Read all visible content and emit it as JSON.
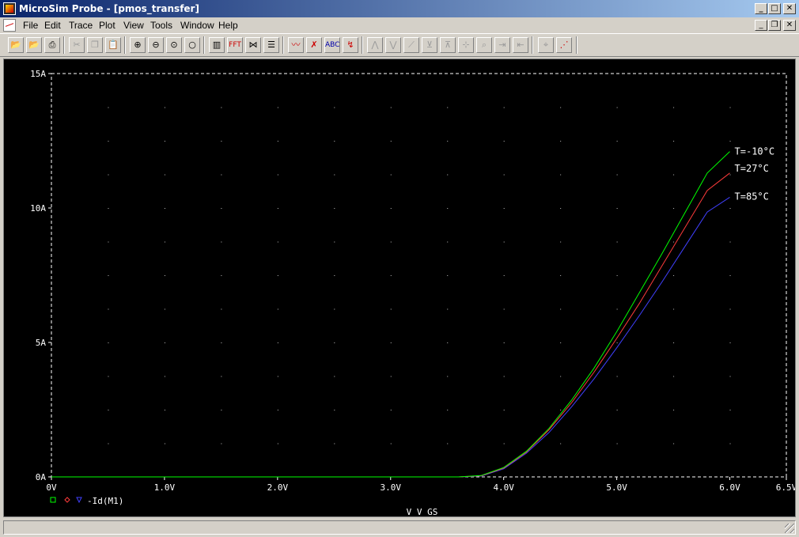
{
  "window": {
    "title": "MicroSim Probe - [pmos_transfer]"
  },
  "menu": [
    "File",
    "Edit",
    "Trace",
    "Plot",
    "View",
    "Tools",
    "Window",
    "Help"
  ],
  "toolbar": [
    "open-icon",
    "open-append-icon",
    "print-icon",
    "cut-icon",
    "copy-icon",
    "paste-icon",
    "zoom-in-icon",
    "zoom-out-icon",
    "zoom-area-icon",
    "zoom-fit-icon",
    "toggle-plot-icon",
    "fft-icon",
    "performance-icon",
    "eval-icon",
    "add-trace-icon",
    "delete-traces-icon",
    "label-icon",
    "mark-data-points-icon",
    "cursor-peak-icon",
    "cursor-trough-icon",
    "cursor-slope-icon",
    "cursor-min-icon",
    "cursor-max-icon",
    "cursor-point-icon",
    "cursor-search-icon",
    "next-transition-icon",
    "previous-transition-icon",
    "mark-label-icon",
    "display-measurements-icon"
  ],
  "colors": {
    "background": "#000000",
    "grid": "#ffffff",
    "series": [
      "#00ff00",
      "#ff3b3b",
      "#4040ff"
    ]
  },
  "chart_data": {
    "type": "line",
    "title": "",
    "xlabel": "V_V_GS",
    "ylabel": "",
    "xlim": [
      0,
      6.5
    ],
    "ylim": [
      0,
      15
    ],
    "xticks": [
      "0V",
      "1.0V",
      "2.0V",
      "3.0V",
      "4.0V",
      "5.0V",
      "6.0V",
      "6.5V"
    ],
    "xtick_values": [
      0,
      1,
      2,
      3,
      4,
      5,
      6,
      6.5
    ],
    "yticks": [
      "0A",
      "5A",
      "10A",
      "15A"
    ],
    "ytick_values": [
      0,
      5,
      10,
      15
    ],
    "grid": "dotted",
    "legend": {
      "position": "bottom-left",
      "text": "-Id(M1)",
      "markers": [
        "square",
        "diamond",
        "triangle"
      ]
    },
    "series": [
      {
        "name": "T=-10°C",
        "color": "#00ff00",
        "x": [
          0,
          3.0,
          3.6,
          3.8,
          4.0,
          4.2,
          4.4,
          4.6,
          4.8,
          5.0,
          5.2,
          5.4,
          5.6,
          5.8,
          6.0
        ],
        "y": [
          0,
          0,
          0,
          0.05,
          0.35,
          0.95,
          1.8,
          2.85,
          4.05,
          5.4,
          6.85,
          8.3,
          9.8,
          11.3,
          12.1
        ]
      },
      {
        "name": "T=27°C",
        "color": "#ff3b3b",
        "x": [
          0,
          3.0,
          3.6,
          3.8,
          4.0,
          4.2,
          4.4,
          4.6,
          4.8,
          5.0,
          5.2,
          5.4,
          5.6,
          5.8,
          6.0
        ],
        "y": [
          0,
          0,
          0,
          0.04,
          0.33,
          0.92,
          1.75,
          2.75,
          3.9,
          5.15,
          6.45,
          7.85,
          9.25,
          10.65,
          11.3
        ]
      },
      {
        "name": "T=85°C",
        "color": "#4040ff",
        "x": [
          0,
          3.0,
          3.6,
          3.8,
          4.0,
          4.2,
          4.4,
          4.6,
          4.8,
          5.0,
          5.2,
          5.4,
          5.6,
          5.8,
          6.0
        ],
        "y": [
          0,
          0,
          0,
          0.03,
          0.3,
          0.88,
          1.65,
          2.6,
          3.65,
          4.8,
          6.0,
          7.25,
          8.55,
          9.85,
          10.4
        ]
      }
    ],
    "annotations": [
      "T=-10°C",
      "T=27°C",
      "T=85°C"
    ]
  }
}
